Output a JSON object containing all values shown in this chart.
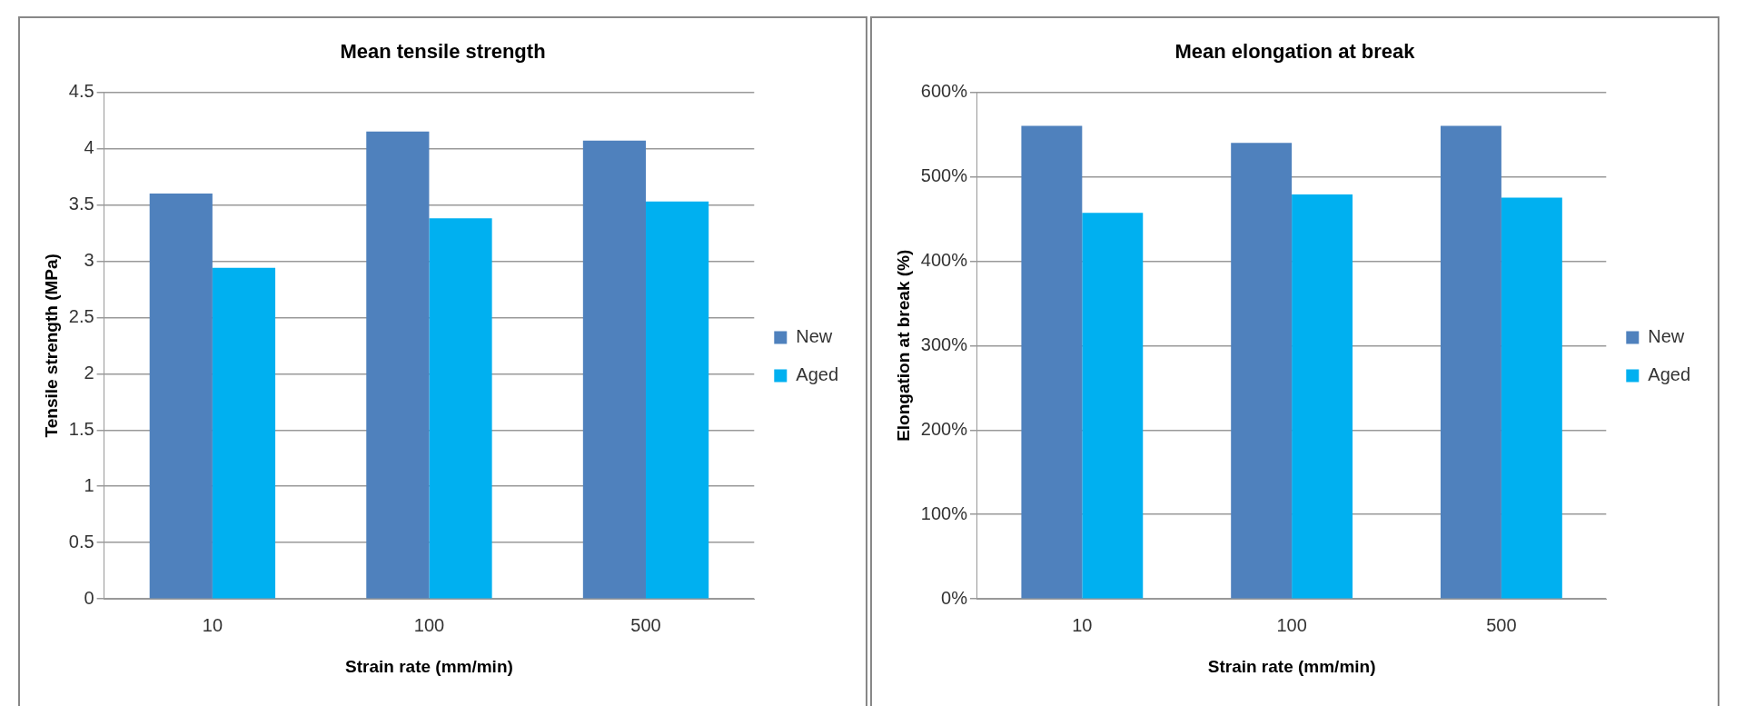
{
  "chart_data": [
    {
      "type": "bar",
      "title": "Mean tensile strength",
      "xlabel": "Strain rate (mm/min)",
      "ylabel": "Tensile strength (MPa)",
      "categories": [
        "10",
        "100",
        "500"
      ],
      "series": [
        {
          "name": "New",
          "color": "#4f81bd",
          "values": [
            3.6,
            4.15,
            4.07
          ]
        },
        {
          "name": "Aged",
          "color": "#00b0f0",
          "values": [
            2.94,
            3.38,
            3.53
          ]
        }
      ],
      "ylim": [
        0,
        4.5
      ],
      "yticks": [
        0,
        0.5,
        1,
        1.5,
        2,
        2.5,
        3,
        3.5,
        4,
        4.5
      ],
      "grid": "y",
      "legend": "right"
    },
    {
      "type": "bar",
      "title": "Mean elongation at break",
      "xlabel": "Strain rate (mm/min)",
      "ylabel": "Elongation at break (%)",
      "categories": [
        "10",
        "100",
        "500"
      ],
      "series": [
        {
          "name": "New",
          "color": "#4f81bd",
          "values": [
            560,
            540,
            560
          ]
        },
        {
          "name": "Aged",
          "color": "#00b0f0",
          "values": [
            457,
            479,
            475
          ]
        }
      ],
      "ylim": [
        0,
        600
      ],
      "yticks": [
        {
          "value": 0,
          "label": "0%"
        },
        {
          "value": 100,
          "label": "100%"
        },
        {
          "value": 200,
          "label": "200%"
        },
        {
          "value": 300,
          "label": "300%"
        },
        {
          "value": 400,
          "label": "400%"
        },
        {
          "value": 500,
          "label": "500%"
        },
        {
          "value": 600,
          "label": "600%"
        }
      ],
      "grid": "y",
      "legend": "right"
    }
  ]
}
